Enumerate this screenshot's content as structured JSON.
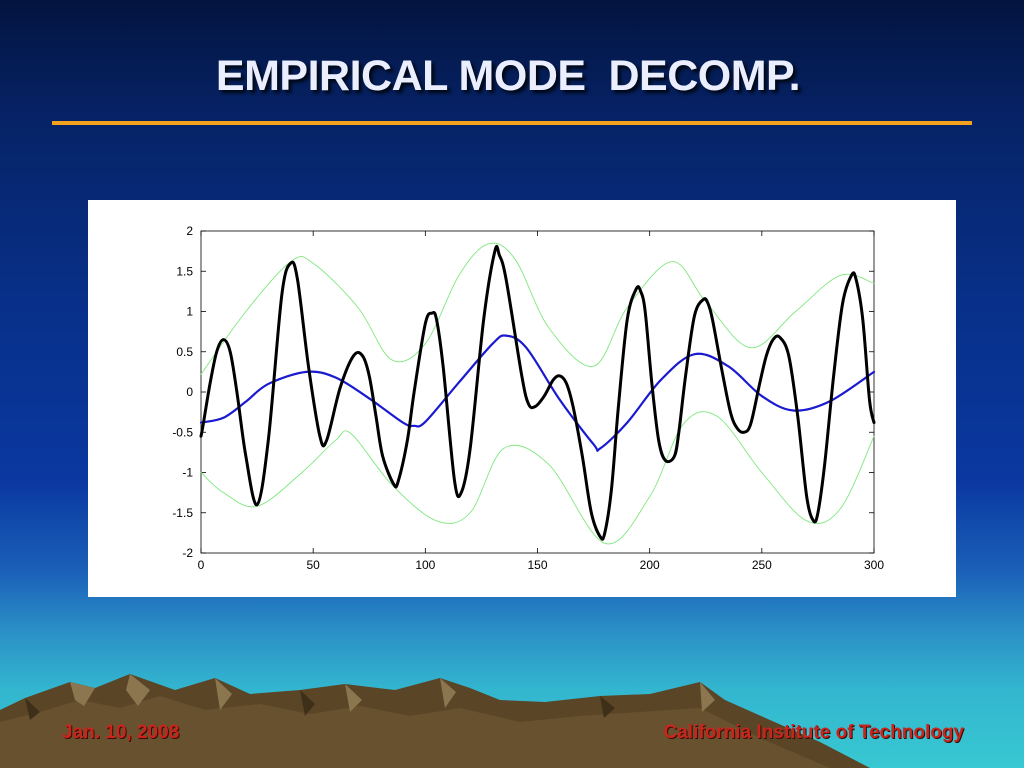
{
  "slide": {
    "title": "EMPIRICAL MODE  DECOMP.",
    "footer_left": "Jan. 10, 2008",
    "footer_right": "California Institute of Technology"
  },
  "colors": {
    "title_rule": "#f4a21c",
    "footer_text": "#c8251c",
    "signal": "#000000",
    "mean": "#1a1ad0",
    "envelope": "#7fe87f"
  },
  "chart_data": {
    "type": "line",
    "title": "",
    "xlabel": "",
    "ylabel": "",
    "xlim": [
      0,
      300
    ],
    "ylim": [
      -2,
      2
    ],
    "xticks": [
      "0",
      "50",
      "100",
      "150",
      "200",
      "250",
      "300"
    ],
    "yticks": [
      "2",
      "1.5",
      "1",
      "0.5",
      "0",
      "-0.5",
      "-1",
      "-1.5",
      "-2"
    ],
    "grid": false,
    "series": [
      {
        "role": "signal",
        "x": [
          0,
          1,
          4,
          7,
          10,
          13,
          16,
          20,
          25,
          30,
          36,
          40,
          43,
          48,
          53,
          56,
          62,
          68,
          72,
          75,
          78,
          81,
          86,
          88,
          92,
          95,
          100,
          103,
          105,
          108,
          113,
          116,
          120,
          126,
          131,
          133,
          136,
          143,
          146,
          149,
          153,
          157,
          160,
          163,
          166,
          170,
          174,
          178,
          180,
          183,
          186,
          190,
          194,
          196,
          198,
          201,
          204,
          207,
          211,
          213,
          216,
          220,
          224,
          226,
          228,
          232,
          236,
          239,
          242,
          245,
          249,
          252,
          255,
          258,
          262,
          266,
          270,
          273,
          275,
          278,
          282,
          286,
          290,
          292,
          295,
          298,
          300
        ],
        "y": [
          -0.55,
          -0.4,
          0.1,
          0.5,
          0.65,
          0.5,
          0.0,
          -0.8,
          -1.4,
          -0.6,
          1.2,
          1.6,
          1.4,
          0.3,
          -0.55,
          -0.6,
          0.05,
          0.45,
          0.45,
          0.2,
          -0.3,
          -0.8,
          -1.15,
          -1.1,
          -0.6,
          0.0,
          0.85,
          0.98,
          0.9,
          0.3,
          -1.1,
          -1.25,
          -0.7,
          0.9,
          1.75,
          1.7,
          1.4,
          0.2,
          -0.15,
          -0.18,
          -0.05,
          0.15,
          0.2,
          0.1,
          -0.2,
          -0.8,
          -1.5,
          -1.8,
          -1.75,
          -1.2,
          -0.2,
          0.9,
          1.28,
          1.25,
          1.0,
          0.1,
          -0.6,
          -0.85,
          -0.8,
          -0.5,
          0.2,
          0.95,
          1.15,
          1.1,
          0.9,
          0.3,
          -0.25,
          -0.45,
          -0.5,
          -0.4,
          0.1,
          0.45,
          0.65,
          0.68,
          0.45,
          -0.3,
          -1.3,
          -1.6,
          -1.5,
          -0.9,
          0.2,
          1.1,
          1.45,
          1.4,
          0.9,
          -0.1,
          -0.38
        ]
      },
      {
        "role": "mean",
        "x": [
          0,
          10,
          20,
          30,
          47,
          60,
          75,
          90,
          95,
          100,
          115,
          130,
          136,
          145,
          160,
          175,
          178,
          190,
          205,
          220,
          235,
          250,
          264,
          280,
          300
        ],
        "y": [
          -0.38,
          -0.32,
          -0.12,
          0.1,
          0.25,
          0.18,
          -0.08,
          -0.38,
          -0.42,
          -0.37,
          0.12,
          0.6,
          0.7,
          0.55,
          -0.1,
          -0.65,
          -0.7,
          -0.38,
          0.15,
          0.47,
          0.32,
          -0.05,
          -0.23,
          -0.12,
          0.25
        ]
      },
      {
        "role": "upper-envelope",
        "x": [
          0,
          20,
          40,
          50,
          70,
          85,
          100,
          115,
          128,
          140,
          155,
          175,
          190,
          210,
          225,
          245,
          265,
          285,
          300
        ],
        "y": [
          0.22,
          1.0,
          1.62,
          1.6,
          1.05,
          0.4,
          0.6,
          1.45,
          1.84,
          1.65,
          0.8,
          0.32,
          1.05,
          1.62,
          1.12,
          0.55,
          1.0,
          1.45,
          1.35
        ]
      },
      {
        "role": "lower-envelope",
        "x": [
          0,
          10,
          25,
          45,
          60,
          67,
          85,
          105,
          120,
          135,
          155,
          180,
          200,
          215,
          230,
          250,
          270,
          285,
          300
        ],
        "y": [
          -1.0,
          -1.25,
          -1.42,
          -1.0,
          -0.6,
          -0.52,
          -1.15,
          -1.6,
          -1.5,
          -0.7,
          -0.9,
          -1.88,
          -1.3,
          -0.4,
          -0.3,
          -1.0,
          -1.6,
          -1.45,
          -0.55
        ]
      }
    ]
  }
}
